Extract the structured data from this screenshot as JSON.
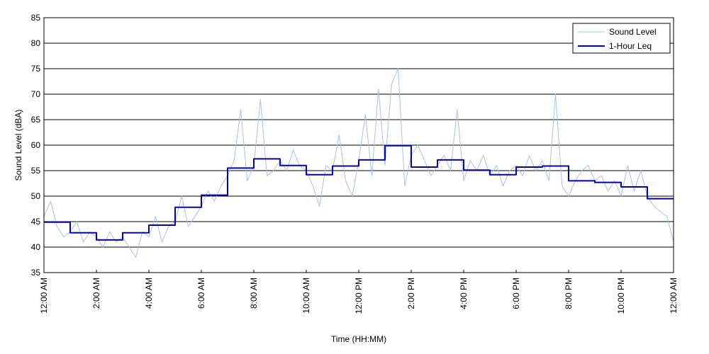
{
  "chart_data": {
    "type": "line",
    "xlabel": "Time (HH:MM)",
    "ylabel": "Sound Level (dBA)",
    "xlim": [
      0,
      24
    ],
    "ylim": [
      35,
      85
    ],
    "y_ticks": [
      35,
      40,
      45,
      50,
      55,
      60,
      65,
      70,
      75,
      80,
      85
    ],
    "x_ticks": [
      0,
      2,
      4,
      6,
      8,
      10,
      12,
      14,
      16,
      18,
      20,
      22,
      24
    ],
    "x_tick_labels": [
      "12:00 AM",
      "2:00 AM",
      "4:00 AM",
      "6:00 AM",
      "8:00 AM",
      "10:00 AM",
      "12:00 PM",
      "2:00 PM",
      "4:00 PM",
      "6:00 PM",
      "8:00 PM",
      "10:00 PM",
      "12:00 AM"
    ],
    "grid": "horizontal",
    "legend_position": "top-right",
    "series": [
      {
        "name": "Sound Level",
        "color": "#a8c0f0",
        "x": [
          0,
          0.25,
          0.5,
          0.75,
          1,
          1.25,
          1.5,
          1.75,
          2,
          2.25,
          2.5,
          2.75,
          3,
          3.25,
          3.5,
          3.75,
          4,
          4.25,
          4.5,
          4.75,
          5,
          5.25,
          5.5,
          5.75,
          6,
          6.25,
          6.5,
          6.75,
          7,
          7.25,
          7.5,
          7.75,
          8,
          8.25,
          8.5,
          8.75,
          9,
          9.25,
          9.5,
          9.75,
          10,
          10.25,
          10.5,
          10.75,
          11,
          11.25,
          11.5,
          11.75,
          12,
          12.25,
          12.5,
          12.75,
          13,
          13.25,
          13.5,
          13.75,
          14,
          14.25,
          14.5,
          14.75,
          15,
          15.25,
          15.5,
          15.75,
          16,
          16.25,
          16.5,
          16.75,
          17,
          17.25,
          17.5,
          17.75,
          18,
          18.25,
          18.5,
          18.75,
          19,
          19.25,
          19.5,
          19.75,
          20,
          20.25,
          20.5,
          20.75,
          21,
          21.25,
          21.5,
          21.75,
          22,
          22.25,
          22.5,
          22.75,
          23,
          23.25,
          23.5,
          23.75,
          24
        ],
        "y": [
          46,
          49,
          44,
          42,
          43,
          45,
          41,
          43,
          42,
          40,
          43,
          41,
          42,
          40,
          38,
          43,
          42,
          46,
          41,
          44,
          45,
          50,
          44,
          46,
          48,
          51,
          49,
          52,
          54,
          57,
          67,
          53,
          56,
          69,
          54,
          55,
          57,
          55,
          59,
          56,
          55,
          52,
          48,
          56,
          55,
          62,
          53,
          50,
          57,
          66,
          54,
          71,
          56,
          72,
          75,
          52,
          58,
          60,
          57,
          54,
          56,
          58,
          55,
          67,
          53,
          57,
          55,
          58,
          54,
          56,
          52,
          55,
          56,
          54,
          58,
          55,
          57,
          53,
          70,
          52,
          50,
          53,
          55,
          56,
          53,
          54,
          51,
          53,
          50,
          56,
          51,
          55,
          50,
          48,
          47,
          46,
          41
        ]
      },
      {
        "name": "1-Hour Leq",
        "color": "#0000cc",
        "step": "post",
        "x": [
          0,
          1,
          2,
          3,
          4,
          5,
          6,
          7,
          8,
          9,
          10,
          11,
          12,
          13,
          14,
          15,
          16,
          17,
          18,
          19,
          20,
          21,
          22,
          23,
          24
        ],
        "y": [
          44.9,
          42.8,
          41.4,
          42.8,
          44.3,
          47.8,
          50.2,
          55.5,
          57.3,
          56.0,
          54.2,
          55.9,
          57.1,
          59.9,
          55.7,
          57.1,
          55.1,
          54.2,
          55.7,
          55.9,
          53.0,
          52.7,
          51.8,
          49.5,
          49.5
        ]
      }
    ]
  }
}
